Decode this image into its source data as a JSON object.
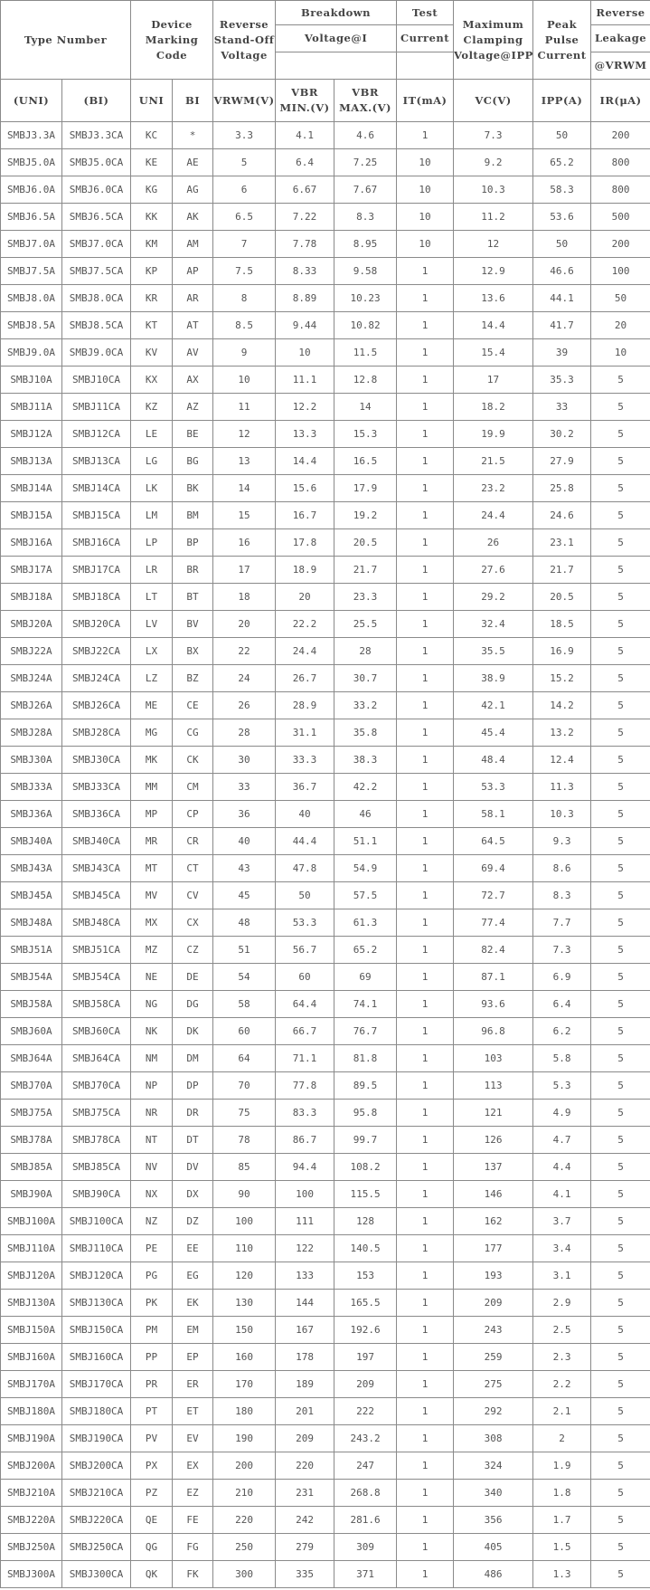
{
  "header": {
    "type_number": "Type Number",
    "marking_code": "Device Marking Code",
    "standoff": "Reverse Stand-Off Voltage",
    "breakdown_1": "Breakdown",
    "breakdown_2": "Voltage@I",
    "test_1": "Test",
    "test_2": "Current",
    "clamping": "Maximum Clamping Voltage@IPP",
    "peak": "Peak Pulse Current",
    "leak_1": "Reverse",
    "leak_2": "Leakage",
    "leak_3": "@VRWM"
  },
  "subheader": [
    "(UNI)",
    "(BI)",
    "UNI",
    "BI",
    "VRWM(V)",
    "VBR MIN.(V)",
    "VBR MAX.(V)",
    "IT(mA)",
    "VC(V)",
    "IPP(A)",
    "IR(μA)"
  ],
  "rows": [
    [
      "SMBJ3.3A",
      "SMBJ3.3CA",
      "KC",
      "*",
      "3.3",
      "4.1",
      "4.6",
      "1",
      "7.3",
      "50",
      "200"
    ],
    [
      "SMBJ5.0A",
      "SMBJ5.0CA",
      "KE",
      "AE",
      "5",
      "6.4",
      "7.25",
      "10",
      "9.2",
      "65.2",
      "800"
    ],
    [
      "SMBJ6.0A",
      "SMBJ6.0CA",
      "KG",
      "AG",
      "6",
      "6.67",
      "7.67",
      "10",
      "10.3",
      "58.3",
      "800"
    ],
    [
      "SMBJ6.5A",
      "SMBJ6.5CA",
      "KK",
      "AK",
      "6.5",
      "7.22",
      "8.3",
      "10",
      "11.2",
      "53.6",
      "500"
    ],
    [
      "SMBJ7.0A",
      "SMBJ7.0CA",
      "KM",
      "AM",
      "7",
      "7.78",
      "8.95",
      "10",
      "12",
      "50",
      "200"
    ],
    [
      "SMBJ7.5A",
      "SMBJ7.5CA",
      "KP",
      "AP",
      "7.5",
      "8.33",
      "9.58",
      "1",
      "12.9",
      "46.6",
      "100"
    ],
    [
      "SMBJ8.0A",
      "SMBJ8.0CA",
      "KR",
      "AR",
      "8",
      "8.89",
      "10.23",
      "1",
      "13.6",
      "44.1",
      "50"
    ],
    [
      "SMBJ8.5A",
      "SMBJ8.5CA",
      "KT",
      "AT",
      "8.5",
      "9.44",
      "10.82",
      "1",
      "14.4",
      "41.7",
      "20"
    ],
    [
      "SMBJ9.0A",
      "SMBJ9.0CA",
      "KV",
      "AV",
      "9",
      "10",
      "11.5",
      "1",
      "15.4",
      "39",
      "10"
    ],
    [
      "SMBJ10A",
      "SMBJ10CA",
      "KX",
      "AX",
      "10",
      "11.1",
      "12.8",
      "1",
      "17",
      "35.3",
      "5"
    ],
    [
      "SMBJ11A",
      "SMBJ11CA",
      "KZ",
      "AZ",
      "11",
      "12.2",
      "14",
      "1",
      "18.2",
      "33",
      "5"
    ],
    [
      "SMBJ12A",
      "SMBJ12CA",
      "LE",
      "BE",
      "12",
      "13.3",
      "15.3",
      "1",
      "19.9",
      "30.2",
      "5"
    ],
    [
      "SMBJ13A",
      "SMBJ13CA",
      "LG",
      "BG",
      "13",
      "14.4",
      "16.5",
      "1",
      "21.5",
      "27.9",
      "5"
    ],
    [
      "SMBJ14A",
      "SMBJ14CA",
      "LK",
      "BK",
      "14",
      "15.6",
      "17.9",
      "1",
      "23.2",
      "25.8",
      "5"
    ],
    [
      "SMBJ15A",
      "SMBJ15CA",
      "LM",
      "BM",
      "15",
      "16.7",
      "19.2",
      "1",
      "24.4",
      "24.6",
      "5"
    ],
    [
      "SMBJ16A",
      "SMBJ16CA",
      "LP",
      "BP",
      "16",
      "17.8",
      "20.5",
      "1",
      "26",
      "23.1",
      "5"
    ],
    [
      "SMBJ17A",
      "SMBJ17CA",
      "LR",
      "BR",
      "17",
      "18.9",
      "21.7",
      "1",
      "27.6",
      "21.7",
      "5"
    ],
    [
      "SMBJ18A",
      "SMBJ18CA",
      "LT",
      "BT",
      "18",
      "20",
      "23.3",
      "1",
      "29.2",
      "20.5",
      "5"
    ],
    [
      "SMBJ20A",
      "SMBJ20CA",
      "LV",
      "BV",
      "20",
      "22.2",
      "25.5",
      "1",
      "32.4",
      "18.5",
      "5"
    ],
    [
      "SMBJ22A",
      "SMBJ22CA",
      "LX",
      "BX",
      "22",
      "24.4",
      "28",
      "1",
      "35.5",
      "16.9",
      "5"
    ],
    [
      "SMBJ24A",
      "SMBJ24CA",
      "LZ",
      "BZ",
      "24",
      "26.7",
      "30.7",
      "1",
      "38.9",
      "15.2",
      "5"
    ],
    [
      "SMBJ26A",
      "SMBJ26CA",
      "ME",
      "CE",
      "26",
      "28.9",
      "33.2",
      "1",
      "42.1",
      "14.2",
      "5"
    ],
    [
      "SMBJ28A",
      "SMBJ28CA",
      "MG",
      "CG",
      "28",
      "31.1",
      "35.8",
      "1",
      "45.4",
      "13.2",
      "5"
    ],
    [
      "SMBJ30A",
      "SMBJ30CA",
      "MK",
      "CK",
      "30",
      "33.3",
      "38.3",
      "1",
      "48.4",
      "12.4",
      "5"
    ],
    [
      "SMBJ33A",
      "SMBJ33CA",
      "MM",
      "CM",
      "33",
      "36.7",
      "42.2",
      "1",
      "53.3",
      "11.3",
      "5"
    ],
    [
      "SMBJ36A",
      "SMBJ36CA",
      "MP",
      "CP",
      "36",
      "40",
      "46",
      "1",
      "58.1",
      "10.3",
      "5"
    ],
    [
      "SMBJ40A",
      "SMBJ40CA",
      "MR",
      "CR",
      "40",
      "44.4",
      "51.1",
      "1",
      "64.5",
      "9.3",
      "5"
    ],
    [
      "SMBJ43A",
      "SMBJ43CA",
      "MT",
      "CT",
      "43",
      "47.8",
      "54.9",
      "1",
      "69.4",
      "8.6",
      "5"
    ],
    [
      "SMBJ45A",
      "SMBJ45CA",
      "MV",
      "CV",
      "45",
      "50",
      "57.5",
      "1",
      "72.7",
      "8.3",
      "5"
    ],
    [
      "SMBJ48A",
      "SMBJ48CA",
      "MX",
      "CX",
      "48",
      "53.3",
      "61.3",
      "1",
      "77.4",
      "7.7",
      "5"
    ],
    [
      "SMBJ51A",
      "SMBJ51CA",
      "MZ",
      "CZ",
      "51",
      "56.7",
      "65.2",
      "1",
      "82.4",
      "7.3",
      "5"
    ],
    [
      "SMBJ54A",
      "SMBJ54CA",
      "NE",
      "DE",
      "54",
      "60",
      "69",
      "1",
      "87.1",
      "6.9",
      "5"
    ],
    [
      "SMBJ58A",
      "SMBJ58CA",
      "NG",
      "DG",
      "58",
      "64.4",
      "74.1",
      "1",
      "93.6",
      "6.4",
      "5"
    ],
    [
      "SMBJ60A",
      "SMBJ60CA",
      "NK",
      "DK",
      "60",
      "66.7",
      "76.7",
      "1",
      "96.8",
      "6.2",
      "5"
    ],
    [
      "SMBJ64A",
      "SMBJ64CA",
      "NM",
      "DM",
      "64",
      "71.1",
      "81.8",
      "1",
      "103",
      "5.8",
      "5"
    ],
    [
      "SMBJ70A",
      "SMBJ70CA",
      "NP",
      "DP",
      "70",
      "77.8",
      "89.5",
      "1",
      "113",
      "5.3",
      "5"
    ],
    [
      "SMBJ75A",
      "SMBJ75CA",
      "NR",
      "DR",
      "75",
      "83.3",
      "95.8",
      "1",
      "121",
      "4.9",
      "5"
    ],
    [
      "SMBJ78A",
      "SMBJ78CA",
      "NT",
      "DT",
      "78",
      "86.7",
      "99.7",
      "1",
      "126",
      "4.7",
      "5"
    ],
    [
      "SMBJ85A",
      "SMBJ85CA",
      "NV",
      "DV",
      "85",
      "94.4",
      "108.2",
      "1",
      "137",
      "4.4",
      "5"
    ],
    [
      "SMBJ90A",
      "SMBJ90CA",
      "NX",
      "DX",
      "90",
      "100",
      "115.5",
      "1",
      "146",
      "4.1",
      "5"
    ],
    [
      "SMBJ100A",
      "SMBJ100CA",
      "NZ",
      "DZ",
      "100",
      "111",
      "128",
      "1",
      "162",
      "3.7",
      "5"
    ],
    [
      "SMBJ110A",
      "SMBJ110CA",
      "PE",
      "EE",
      "110",
      "122",
      "140.5",
      "1",
      "177",
      "3.4",
      "5"
    ],
    [
      "SMBJ120A",
      "SMBJ120CA",
      "PG",
      "EG",
      "120",
      "133",
      "153",
      "1",
      "193",
      "3.1",
      "5"
    ],
    [
      "SMBJ130A",
      "SMBJ130CA",
      "PK",
      "EK",
      "130",
      "144",
      "165.5",
      "1",
      "209",
      "2.9",
      "5"
    ],
    [
      "SMBJ150A",
      "SMBJ150CA",
      "PM",
      "EM",
      "150",
      "167",
      "192.6",
      "1",
      "243",
      "2.5",
      "5"
    ],
    [
      "SMBJ160A",
      "SMBJ160CA",
      "PP",
      "EP",
      "160",
      "178",
      "197",
      "1",
      "259",
      "2.3",
      "5"
    ],
    [
      "SMBJ170A",
      "SMBJ170CA",
      "PR",
      "ER",
      "170",
      "189",
      "209",
      "1",
      "275",
      "2.2",
      "5"
    ],
    [
      "SMBJ180A",
      "SMBJ180CA",
      "PT",
      "ET",
      "180",
      "201",
      "222",
      "1",
      "292",
      "2.1",
      "5"
    ],
    [
      "SMBJ190A",
      "SMBJ190CA",
      "PV",
      "EV",
      "190",
      "209",
      "243.2",
      "1",
      "308",
      "2",
      "5"
    ],
    [
      "SMBJ200A",
      "SMBJ200CA",
      "PX",
      "EX",
      "200",
      "220",
      "247",
      "1",
      "324",
      "1.9",
      "5"
    ],
    [
      "SMBJ210A",
      "SMBJ210CA",
      "PZ",
      "EZ",
      "210",
      "231",
      "268.8",
      "1",
      "340",
      "1.8",
      "5"
    ],
    [
      "SMBJ220A",
      "SMBJ220CA",
      "QE",
      "FE",
      "220",
      "242",
      "281.6",
      "1",
      "356",
      "1.7",
      "5"
    ],
    [
      "SMBJ250A",
      "SMBJ250CA",
      "QG",
      "FG",
      "250",
      "279",
      "309",
      "1",
      "405",
      "1.5",
      "5"
    ],
    [
      "SMBJ300A",
      "SMBJ300CA",
      "QK",
      "FK",
      "300",
      "335",
      "371",
      "1",
      "486",
      "1.3",
      "5"
    ]
  ]
}
